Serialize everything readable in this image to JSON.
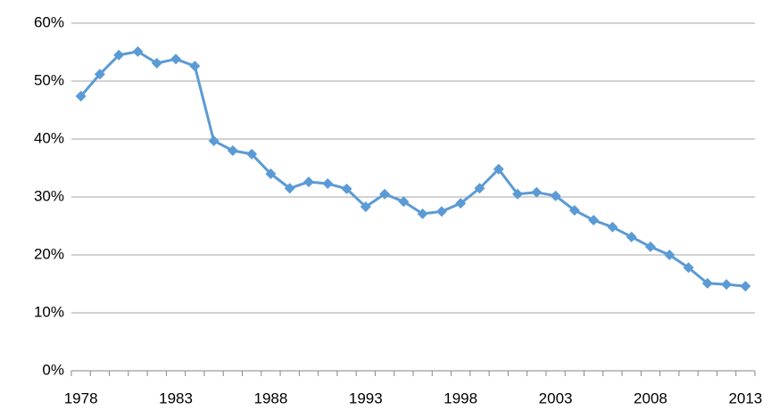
{
  "chart_data": {
    "type": "line",
    "categories": [
      "1978",
      null,
      null,
      null,
      null,
      "1983",
      null,
      null,
      null,
      null,
      "1988",
      null,
      null,
      null,
      null,
      "1993",
      null,
      null,
      null,
      null,
      "1998",
      null,
      null,
      null,
      null,
      "2003",
      null,
      null,
      null,
      null,
      "2008",
      null,
      null,
      null,
      null,
      "2013"
    ],
    "values": [
      47.4,
      51.2,
      54.5,
      55.1,
      53.1,
      53.8,
      52.6,
      39.7,
      38.0,
      37.4,
      34.0,
      31.5,
      32.6,
      32.3,
      31.4,
      28.3,
      30.5,
      29.2,
      27.1,
      27.5,
      28.9,
      31.5,
      34.8,
      30.5,
      30.8,
      30.2,
      27.7,
      26.0,
      24.8,
      23.1,
      21.4,
      20.0,
      17.8,
      15.1,
      14.9,
      14.6
    ],
    "color": "#5b9bd5",
    "ylim": [
      0,
      60
    ],
    "yticks": [
      {
        "value": 0,
        "label": "0%"
      },
      {
        "value": 10,
        "label": "10%"
      },
      {
        "value": 20,
        "label": "20%"
      },
      {
        "value": 30,
        "label": "30%"
      },
      {
        "value": 40,
        "label": "40%"
      },
      {
        "value": 50,
        "label": "50%"
      },
      {
        "value": 60,
        "label": "60%"
      }
    ],
    "grid": true
  }
}
